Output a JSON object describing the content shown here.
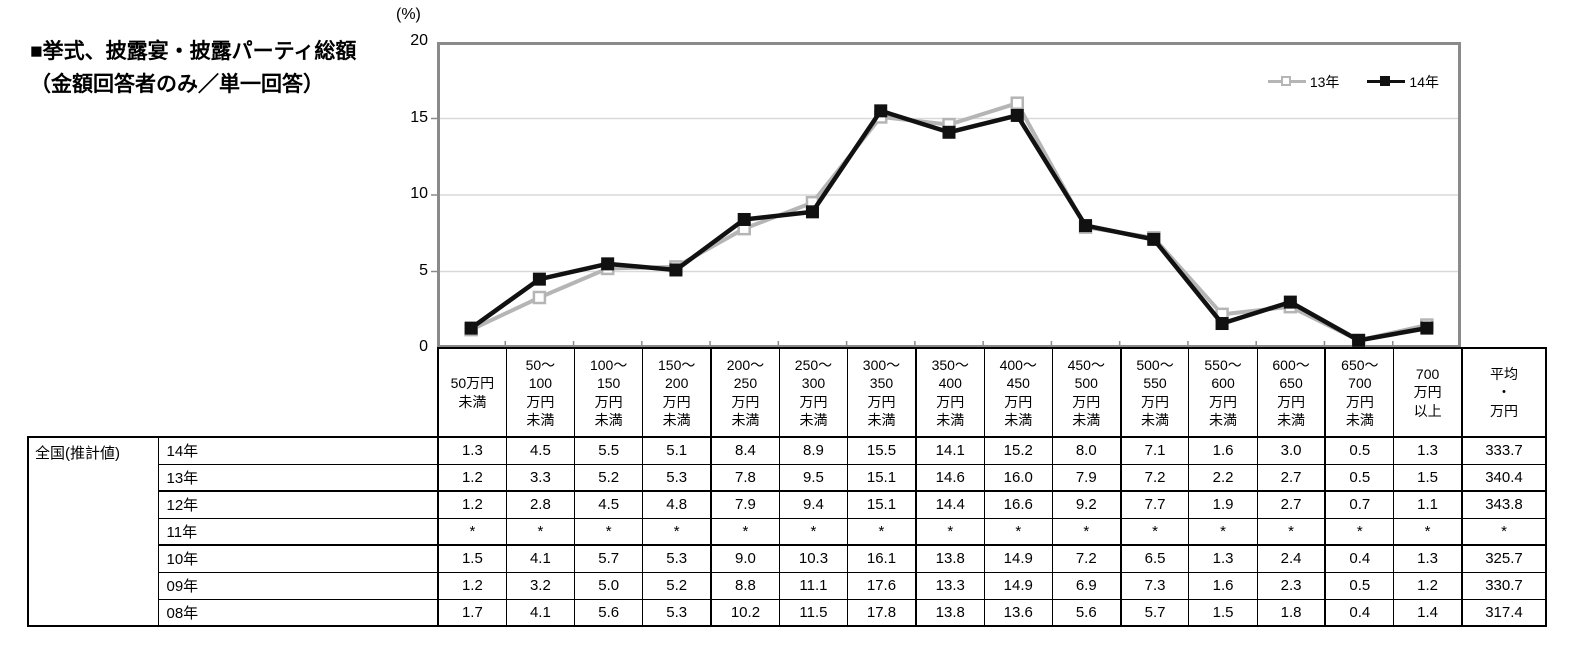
{
  "title": {
    "line1": "■挙式、披露宴・披露パーティ総額",
    "line2": "（金額回答者のみ／単一回答）"
  },
  "chart_data": {
    "type": "line",
    "unit_label": "(%)",
    "categories": [
      "50万円未満",
      "50〜100万円未満",
      "100〜150万円未満",
      "150〜200万円未満",
      "200〜250万円未満",
      "250〜300万円未満",
      "300〜350万円未満",
      "350〜400万円未満",
      "400〜450万円未満",
      "450〜500万円未満",
      "500〜550万円未満",
      "550〜600万円未満",
      "600〜650万円未満",
      "650〜700万円未満",
      "700万円以上"
    ],
    "series": [
      {
        "name": "13年",
        "color": "#b5b5b5",
        "marker": "open-square",
        "values": [
          1.2,
          3.3,
          5.2,
          5.3,
          7.8,
          9.5,
          15.1,
          14.6,
          16.0,
          7.9,
          7.2,
          2.2,
          2.7,
          0.5,
          1.5
        ]
      },
      {
        "name": "14年",
        "color": "#111111",
        "marker": "filled-square",
        "values": [
          1.3,
          4.5,
          5.5,
          5.1,
          8.4,
          8.9,
          15.5,
          14.1,
          15.2,
          8.0,
          7.1,
          1.6,
          3.0,
          0.5,
          1.3
        ]
      }
    ],
    "ylim": [
      0,
      20
    ],
    "yticks": [
      0,
      5,
      10,
      15,
      20
    ],
    "grid": true,
    "legend_position": "top-right",
    "frame_color": "#8a8a8a",
    "gridline_color": "#d9d9d9"
  },
  "table": {
    "group_label": "全国(推計値)",
    "col_headers": [
      "50万円\n未満",
      "50〜\n100\n万円\n未満",
      "100〜\n150\n万円\n未満",
      "150〜\n200\n万円\n未満",
      "200〜\n250\n万円\n未満",
      "250〜\n300\n万円\n未満",
      "300〜\n350\n万円\n未満",
      "350〜\n400\n万円\n未満",
      "400〜\n450\n万円\n未満",
      "450〜\n500\n万円\n未満",
      "500〜\n550\n万円\n未満",
      "550〜\n600\n万円\n未満",
      "600〜\n650\n万円\n未満",
      "650〜\n700\n万円\n未満",
      "700\n万円\n以上"
    ],
    "avg_header": "平均\n・\n万円",
    "rows": [
      {
        "label": "14年",
        "values": [
          "1.3",
          "4.5",
          "5.5",
          "5.1",
          "8.4",
          "8.9",
          "15.5",
          "14.1",
          "15.2",
          "8.0",
          "7.1",
          "1.6",
          "3.0",
          "0.5",
          "1.3"
        ],
        "avg": "333.7"
      },
      {
        "label": "13年",
        "values": [
          "1.2",
          "3.3",
          "5.2",
          "5.3",
          "7.8",
          "9.5",
          "15.1",
          "14.6",
          "16.0",
          "7.9",
          "7.2",
          "2.2",
          "2.7",
          "0.5",
          "1.5"
        ],
        "avg": "340.4"
      },
      {
        "label": "12年",
        "values": [
          "1.2",
          "2.8",
          "4.5",
          "4.8",
          "7.9",
          "9.4",
          "15.1",
          "14.4",
          "16.6",
          "9.2",
          "7.7",
          "1.9",
          "2.7",
          "0.7",
          "1.1"
        ],
        "avg": "343.8"
      },
      {
        "label": "11年",
        "values": [
          "*",
          "*",
          "*",
          "*",
          "*",
          "*",
          "*",
          "*",
          "*",
          "*",
          "*",
          "*",
          "*",
          "*",
          "*"
        ],
        "avg": "*"
      },
      {
        "label": "10年",
        "values": [
          "1.5",
          "4.1",
          "5.7",
          "5.3",
          "9.0",
          "10.3",
          "16.1",
          "13.8",
          "14.9",
          "7.2",
          "6.5",
          "1.3",
          "2.4",
          "0.4",
          "1.3"
        ],
        "avg": "325.7"
      },
      {
        "label": "09年",
        "values": [
          "1.2",
          "3.2",
          "5.0",
          "5.2",
          "8.8",
          "11.1",
          "17.6",
          "13.3",
          "14.9",
          "6.9",
          "7.3",
          "1.6",
          "2.3",
          "0.5",
          "1.2"
        ],
        "avg": "330.7"
      },
      {
        "label": "08年",
        "values": [
          "1.7",
          "4.1",
          "5.6",
          "5.3",
          "10.2",
          "11.5",
          "17.8",
          "13.8",
          "13.6",
          "5.6",
          "5.7",
          "1.5",
          "1.8",
          "0.4",
          "1.4"
        ],
        "avg": "317.4"
      }
    ],
    "thick_below_row_indexes": [
      1,
      3
    ],
    "thick_left_col_indexes": [
      4,
      7,
      10,
      13
    ]
  }
}
